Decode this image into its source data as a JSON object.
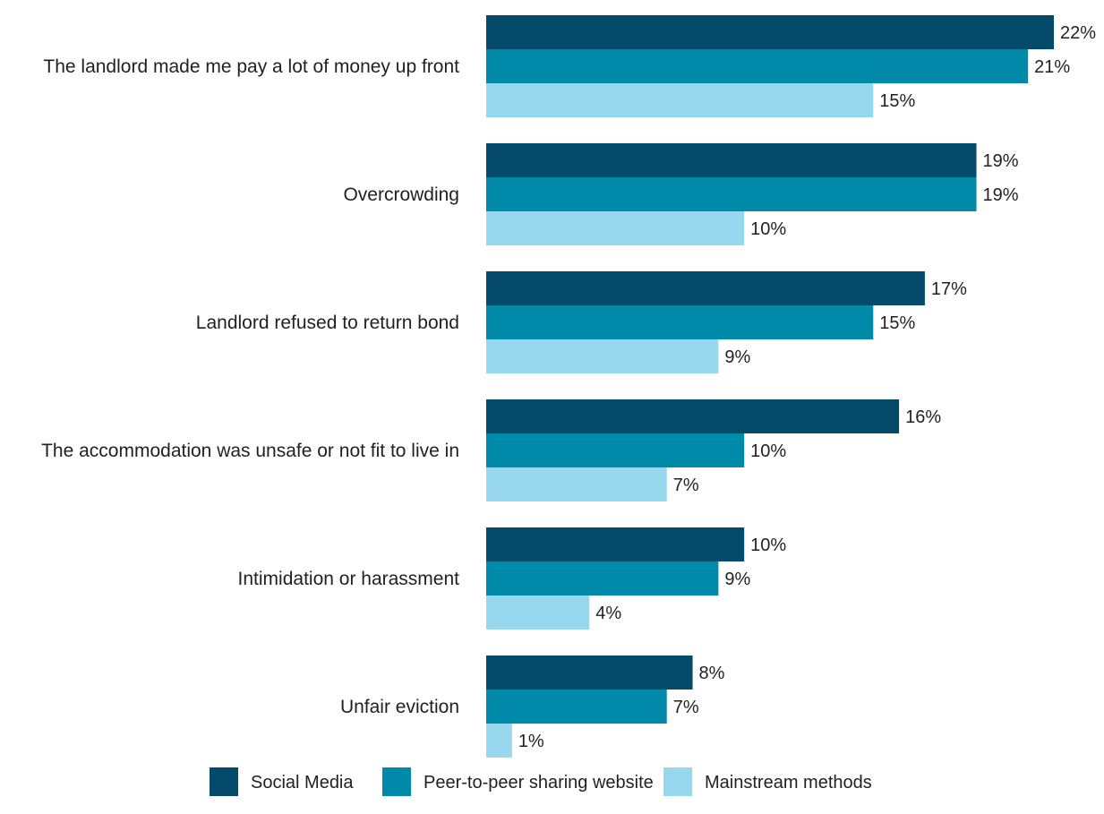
{
  "chart_data": {
    "type": "bar",
    "orientation": "horizontal",
    "categories": [
      "The landlord made me pay a lot of money up front",
      "Overcrowding",
      "Landlord refused to return bond",
      "The accommodation was unsafe or not fit to live in",
      "Intimidation or harassment",
      "Unfair eviction"
    ],
    "series": [
      {
        "name": "Social Media",
        "color": "#034a6b",
        "values": [
          22,
          19,
          17,
          16,
          10,
          8
        ]
      },
      {
        "name": "Peer-to-peer sharing website",
        "color": "#0089a8",
        "values": [
          21,
          19,
          15,
          10,
          9,
          7
        ]
      },
      {
        "name": "Mainstream methods",
        "color": "#97d8ee",
        "values": [
          15,
          10,
          9,
          7,
          4,
          1
        ]
      }
    ],
    "value_suffix": "%",
    "xlim": [
      0,
      22
    ],
    "grid": false,
    "legend_position": "bottom"
  }
}
